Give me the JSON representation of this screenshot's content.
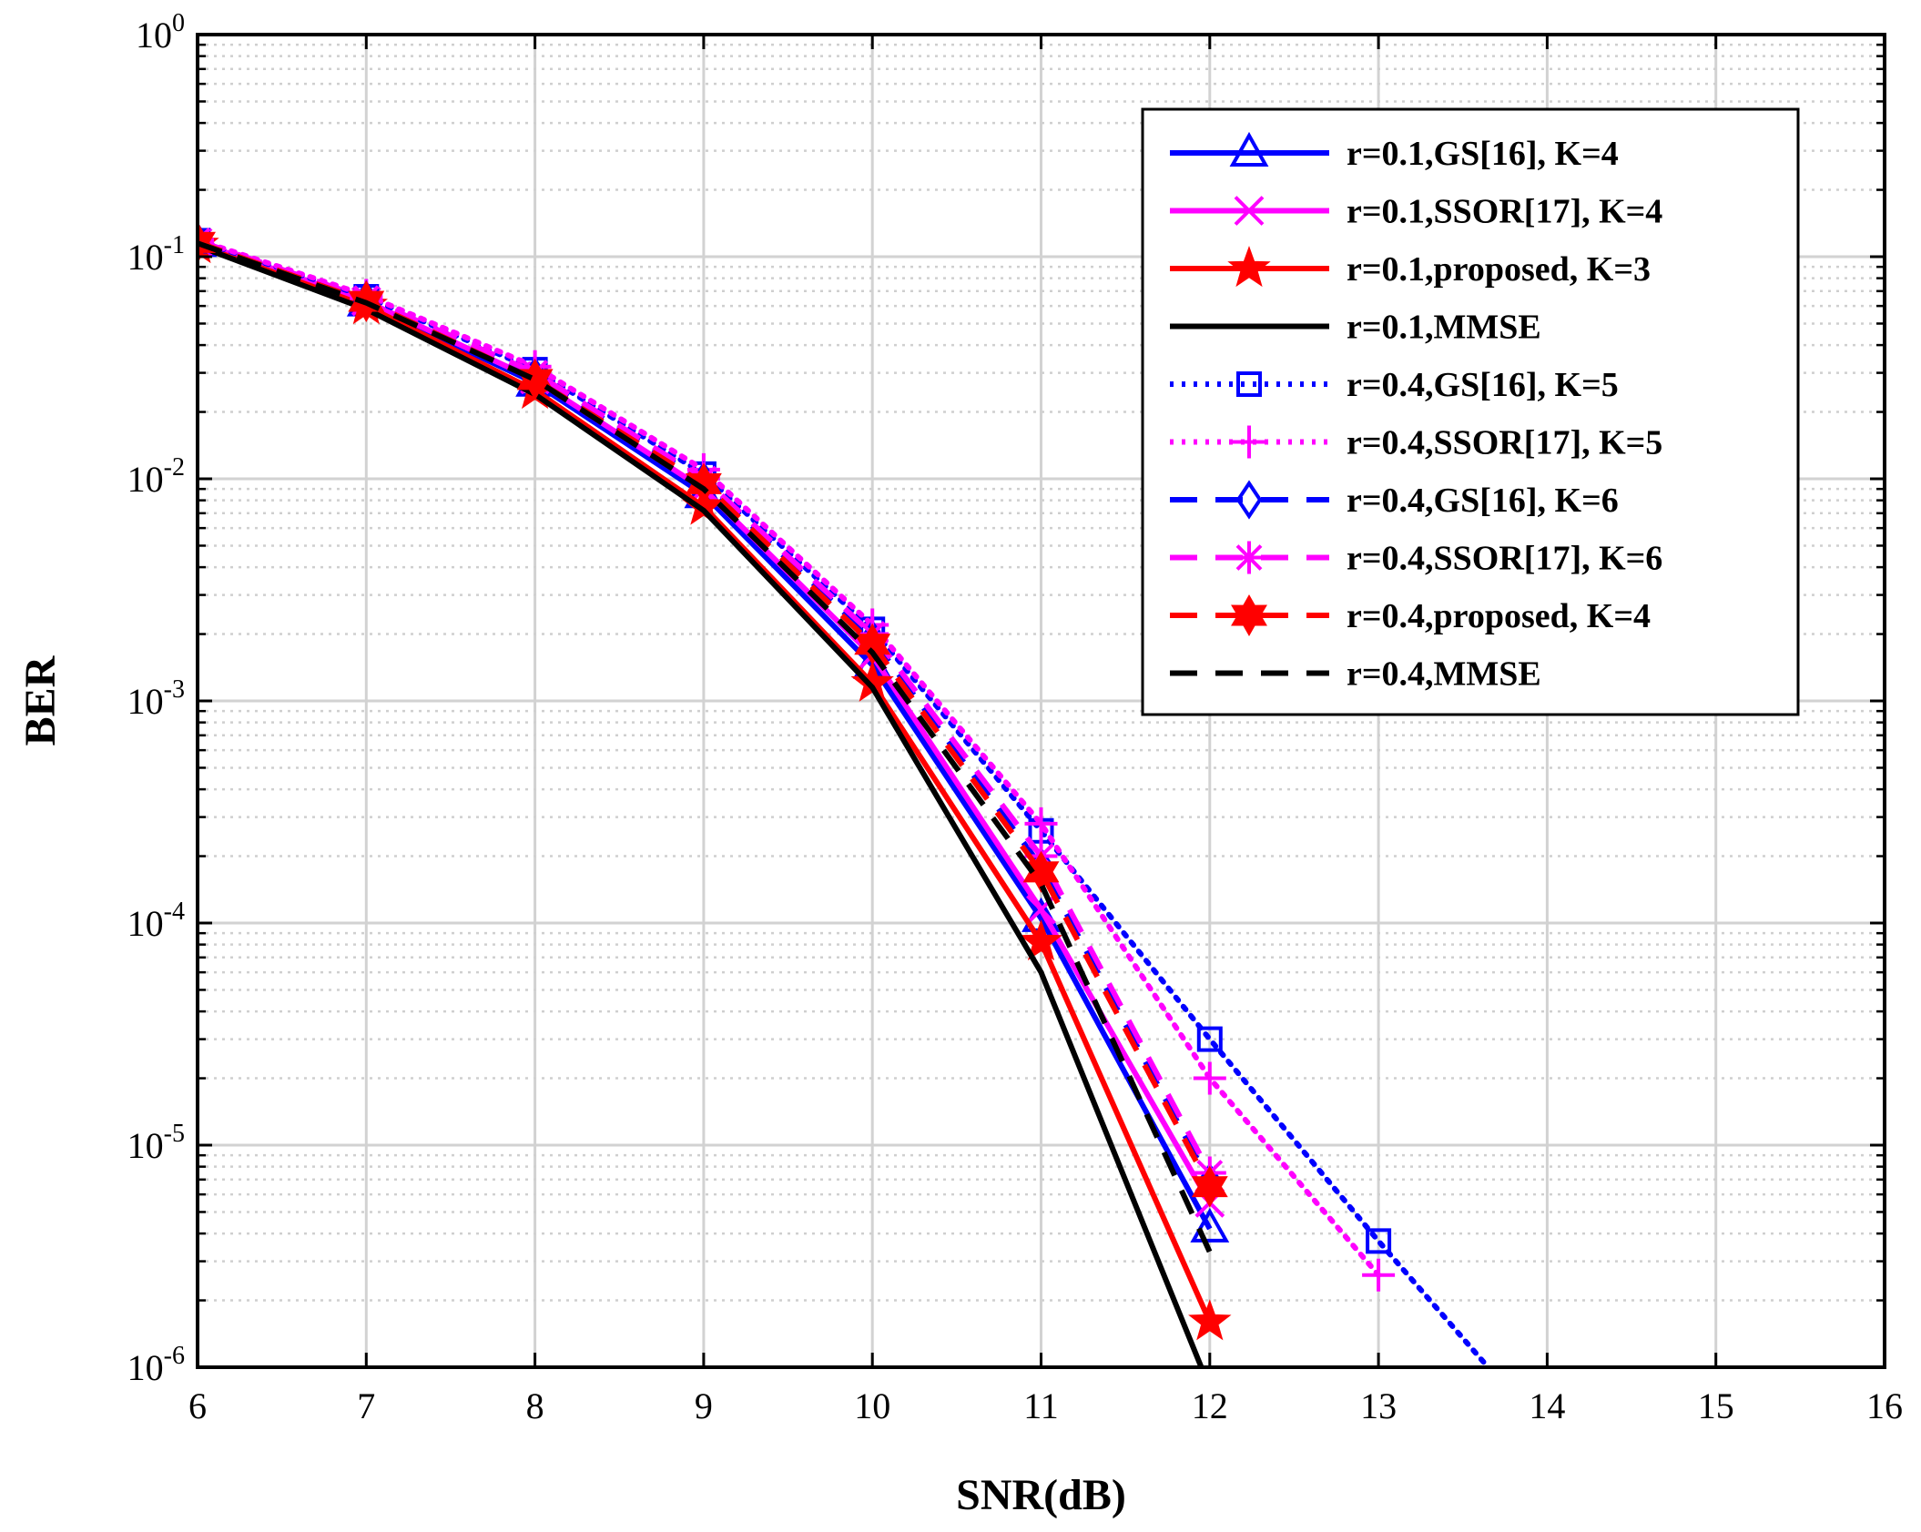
{
  "chart_data": {
    "type": "line",
    "title": "",
    "xlabel": "SNR(dB)",
    "ylabel": "BER",
    "xlim": [
      6,
      16
    ],
    "ylim": [
      1e-06,
      1
    ],
    "yscale": "log",
    "grid": true,
    "legend_position": "top-right",
    "xticks": [
      "6",
      "7",
      "8",
      "9",
      "10",
      "11",
      "12",
      "13",
      "14",
      "15",
      "16"
    ],
    "yticks": [
      {
        "base": "10",
        "exp": "0"
      },
      {
        "base": "10",
        "exp": "-1"
      },
      {
        "base": "10",
        "exp": "-2"
      },
      {
        "base": "10",
        "exp": "-3"
      },
      {
        "base": "10",
        "exp": "-4"
      },
      {
        "base": "10",
        "exp": "-5"
      },
      {
        "base": "10",
        "exp": "-6"
      }
    ],
    "series": [
      {
        "name": "r=0.1,GS[16], K=4",
        "color": "#0000ff",
        "dash": "solid",
        "marker": "triangle",
        "x": [
          6,
          7,
          8,
          9,
          10,
          11,
          12
        ],
        "y": [
          0.115,
          0.062,
          0.027,
          0.0085,
          0.00145,
          0.000105,
          4.2e-06
        ]
      },
      {
        "name": "r=0.1,SSOR[17], K=4",
        "color": "#ff00ff",
        "dash": "solid",
        "marker": "x",
        "x": [
          6,
          7,
          8,
          9,
          10,
          11,
          12
        ],
        "y": [
          0.116,
          0.063,
          0.028,
          0.009,
          0.0016,
          0.000115,
          5.5e-06
        ]
      },
      {
        "name": "r=0.1,proposed, K=3",
        "color": "#ff0000",
        "dash": "solid",
        "marker": "star5",
        "x": [
          6,
          7,
          8,
          9,
          10,
          11,
          12
        ],
        "y": [
          0.113,
          0.06,
          0.025,
          0.0075,
          0.0012,
          8.2e-05,
          1.6e-06
        ]
      },
      {
        "name": "r=0.1,MMSE",
        "color": "#000000",
        "dash": "solid",
        "marker": "none",
        "x": [
          6,
          7,
          8,
          9,
          10,
          11,
          11.95
        ],
        "y": [
          0.112,
          0.058,
          0.024,
          0.0072,
          0.00115,
          6e-05,
          1e-06
        ]
      },
      {
        "name": "r=0.4,GS[16], K=5",
        "color": "#0000ff",
        "dash": "dot",
        "marker": "square",
        "x": [
          6,
          7,
          8,
          9,
          10,
          11,
          12,
          13,
          13.65
        ],
        "y": [
          0.118,
          0.066,
          0.031,
          0.0105,
          0.0021,
          0.00026,
          3e-05,
          3.7e-06,
          1e-06
        ]
      },
      {
        "name": "r=0.4,SSOR[17], K=5",
        "color": "#ff00ff",
        "dash": "dot",
        "marker": "plus",
        "x": [
          6,
          7,
          8,
          9,
          10,
          11,
          12,
          13
        ],
        "y": [
          0.119,
          0.067,
          0.032,
          0.011,
          0.0022,
          0.00028,
          2e-05,
          2.6e-06
        ]
      },
      {
        "name": "r=0.4,GS[16], K=6",
        "color": "#0000ff",
        "dash": "dash",
        "marker": "diamond",
        "x": [
          6,
          7,
          8,
          9,
          10,
          11,
          12
        ],
        "y": [
          0.117,
          0.064,
          0.029,
          0.0098,
          0.0019,
          0.00018,
          6.8e-06
        ]
      },
      {
        "name": "r=0.4,SSOR[17], K=6",
        "color": "#ff00ff",
        "dash": "dash",
        "marker": "asterisk",
        "x": [
          6,
          7,
          8,
          9,
          10,
          11,
          12
        ],
        "y": [
          0.118,
          0.065,
          0.03,
          0.01,
          0.002,
          0.0002,
          7.5e-06
        ]
      },
      {
        "name": "r=0.4,proposed, K=4",
        "color": "#ff0000",
        "dash": "dash",
        "marker": "hexagram",
        "x": [
          6,
          7,
          8,
          9,
          10,
          11,
          12
        ],
        "y": [
          0.116,
          0.063,
          0.028,
          0.0095,
          0.0018,
          0.00017,
          6.5e-06
        ]
      },
      {
        "name": "r=0.4,MMSE",
        "color": "#000000",
        "dash": "dash",
        "marker": "none",
        "x": [
          6,
          7,
          8,
          9,
          10,
          11,
          12
        ],
        "y": [
          0.115,
          0.062,
          0.028,
          0.009,
          0.00165,
          0.00015,
          3.3e-06
        ]
      }
    ]
  }
}
